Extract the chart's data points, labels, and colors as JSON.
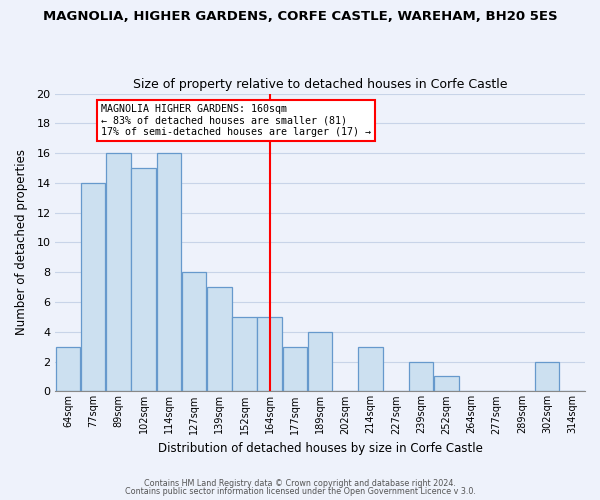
{
  "title": "MAGNOLIA, HIGHER GARDENS, CORFE CASTLE, WAREHAM, BH20 5ES",
  "subtitle": "Size of property relative to detached houses in Corfe Castle",
  "xlabel": "Distribution of detached houses by size in Corfe Castle",
  "ylabel": "Number of detached properties",
  "footer_line1": "Contains HM Land Registry data © Crown copyright and database right 2024.",
  "footer_line2": "Contains public sector information licensed under the Open Government Licence v 3.0.",
  "bar_labels": [
    "64sqm",
    "77sqm",
    "89sqm",
    "102sqm",
    "114sqm",
    "127sqm",
    "139sqm",
    "152sqm",
    "164sqm",
    "177sqm",
    "189sqm",
    "202sqm",
    "214sqm",
    "227sqm",
    "239sqm",
    "252sqm",
    "264sqm",
    "277sqm",
    "289sqm",
    "302sqm",
    "314sqm"
  ],
  "bar_values": [
    3,
    14,
    16,
    15,
    16,
    8,
    7,
    5,
    5,
    3,
    4,
    0,
    3,
    0,
    2,
    1,
    0,
    0,
    0,
    2,
    0
  ],
  "bar_color": "#cce0f0",
  "bar_edge_color": "#6699cc",
  "reference_line_x": 8,
  "ylim": [
    0,
    20
  ],
  "yticks": [
    0,
    2,
    4,
    6,
    8,
    10,
    12,
    14,
    16,
    18,
    20
  ],
  "annotation_title": "MAGNOLIA HIGHER GARDENS: 160sqm",
  "annotation_line1": "← 83% of detached houses are smaller (81)",
  "annotation_line2": "17% of semi-detached houses are larger (17) →",
  "grid_color": "#c8d4e8",
  "background_color": "#eef2fb"
}
